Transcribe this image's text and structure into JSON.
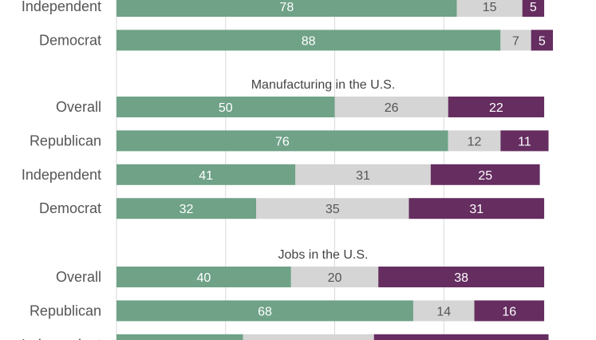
{
  "colors": {
    "favorable": "#6fa287",
    "neutral": "#d5d5d5",
    "unfavorable": "#652d60",
    "gridline": "#d9d9d9",
    "label_light": "#ffffff",
    "label_dark": "#555555"
  },
  "chart_data": {
    "type": "bar",
    "orientation": "horizontal",
    "stacked": true,
    "xlim": [
      0,
      100
    ],
    "grid": true,
    "groups": [
      {
        "title": "",
        "rows": [
          {
            "label": "Independent",
            "values": [
              78,
              15,
              5
            ]
          },
          {
            "label": "Democrat",
            "values": [
              88,
              7,
              5
            ]
          }
        ]
      },
      {
        "title": "Manufacturing in the U.S.",
        "rows": [
          {
            "label": "Overall",
            "values": [
              50,
              26,
              22
            ]
          },
          {
            "label": "Republican",
            "values": [
              76,
              12,
              11
            ]
          },
          {
            "label": "Independent",
            "values": [
              41,
              31,
              25
            ]
          },
          {
            "label": "Democrat",
            "values": [
              32,
              35,
              31
            ]
          }
        ]
      },
      {
        "title": "Jobs in the U.S.",
        "rows": [
          {
            "label": "Overall",
            "values": [
              40,
              20,
              38
            ]
          },
          {
            "label": "Republican",
            "values": [
              68,
              14,
              16
            ]
          },
          {
            "label": "Independent",
            "values": [
              29,
              30,
              40
            ]
          }
        ]
      }
    ]
  }
}
